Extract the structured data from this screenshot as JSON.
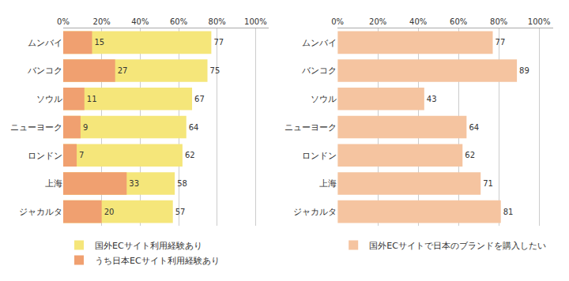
{
  "chart_data": [
    {
      "type": "bar",
      "orientation": "horizontal",
      "stacked": false,
      "categories": [
        "ムンバイ",
        "バンコク",
        "ソウル",
        "ニューヨーク",
        "ロンドン",
        "上海",
        "ジャカルタ"
      ],
      "series": [
        {
          "name": "国外ECサイト利用経験あり",
          "color": "#F5E67A",
          "values": [
            77,
            75,
            67,
            64,
            62,
            58,
            57
          ]
        },
        {
          "name": "うち日本ECサイト利用経験あり",
          "color": "#F0A070",
          "values": [
            15,
            27,
            11,
            9,
            7,
            33,
            20
          ]
        }
      ],
      "xlim": [
        0,
        107
      ],
      "xticks": [
        {
          "value": 0,
          "label": "0%"
        },
        {
          "value": 20,
          "label": "20%"
        },
        {
          "value": 40,
          "label": "40%"
        },
        {
          "value": 60,
          "label": "60%"
        },
        {
          "value": 80,
          "label": "80%"
        },
        {
          "value": 100,
          "label": "100%"
        }
      ],
      "grid": true,
      "data_labels": true,
      "legend": "bottom"
    },
    {
      "type": "bar",
      "orientation": "horizontal",
      "categories": [
        "ムンバイ",
        "バンコク",
        "ソウル",
        "ニューヨーク",
        "ロンドン",
        "上海",
        "ジャカルタ"
      ],
      "series": [
        {
          "name": "国外ECサイトで日本のブランドを購入したい",
          "color": "#F5C4A0",
          "values": [
            77,
            89,
            43,
            64,
            62,
            71,
            81
          ]
        }
      ],
      "xlim": [
        0,
        107
      ],
      "xticks": [
        {
          "value": 0,
          "label": "0%"
        },
        {
          "value": 20,
          "label": "20%"
        },
        {
          "value": 40,
          "label": "40%"
        },
        {
          "value": 60,
          "label": "60%"
        },
        {
          "value": 80,
          "label": "80%"
        },
        {
          "value": 100,
          "label": "100%"
        }
      ],
      "grid": true,
      "data_labels": true,
      "legend": "bottom"
    }
  ]
}
